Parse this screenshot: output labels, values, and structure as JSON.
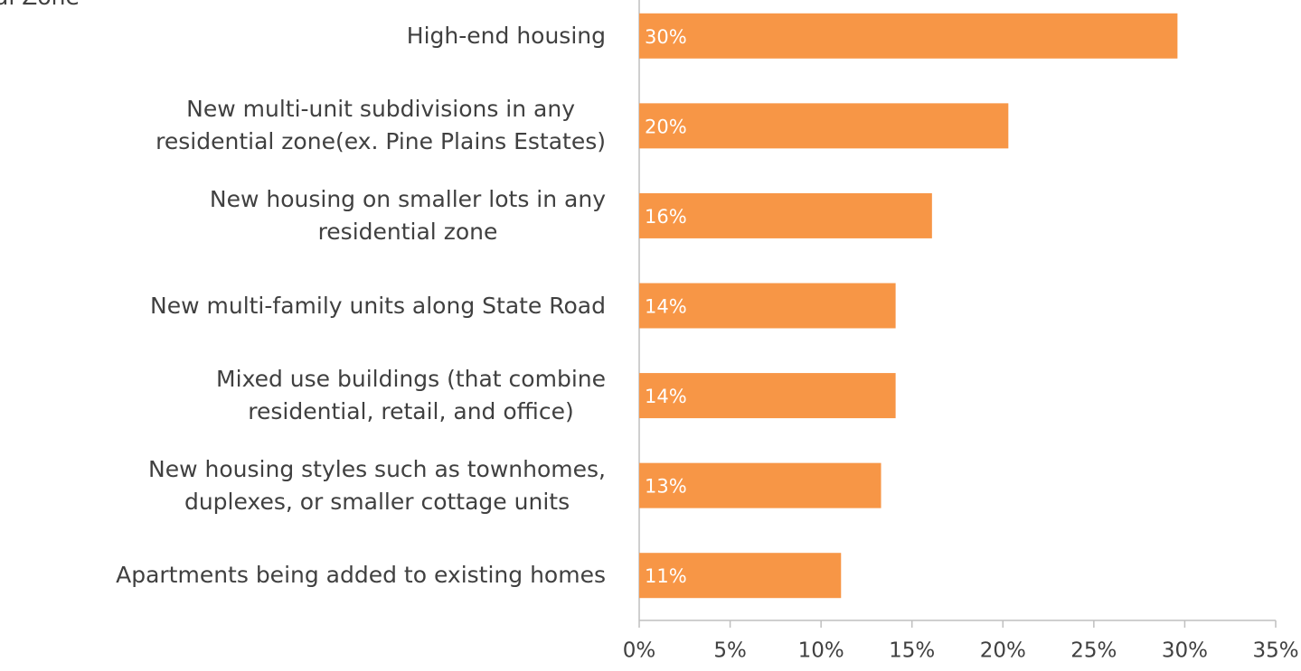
{
  "chart_data": {
    "type": "hbar",
    "annotation": "al Zone",
    "categories": [
      "High-end housing",
      "New multi-unit subdivisions in any\nresidential zone(ex. Pine Plains Estates)",
      "New housing on smaller lots in any\nresidential zone",
      "New multi-family units along State Road",
      "Mixed use buildings (that combine\nresidential, retail, and office)",
      "New housing styles such as townhomes,\nduplexes, or smaller cottage units",
      "Apartments being added to existing homes"
    ],
    "values": [
      29.6,
      20.3,
      16.1,
      14.1,
      14.1,
      13.3,
      11.1
    ],
    "value_labels": [
      "30%",
      "20%",
      "16%",
      "14%",
      "14%",
      "13%",
      "11%"
    ],
    "color": "#f79646",
    "xlim": [
      0,
      35
    ],
    "xticks": [
      {
        "value": 0,
        "label": "0%"
      },
      {
        "value": 5,
        "label": "5%"
      },
      {
        "value": 10,
        "label": "10%"
      },
      {
        "value": 15,
        "label": "15%"
      },
      {
        "value": 20,
        "label": "20%"
      },
      {
        "value": 25,
        "label": "25%"
      },
      {
        "value": 30,
        "label": "30%"
      },
      {
        "value": 35,
        "label": "35%"
      }
    ]
  }
}
